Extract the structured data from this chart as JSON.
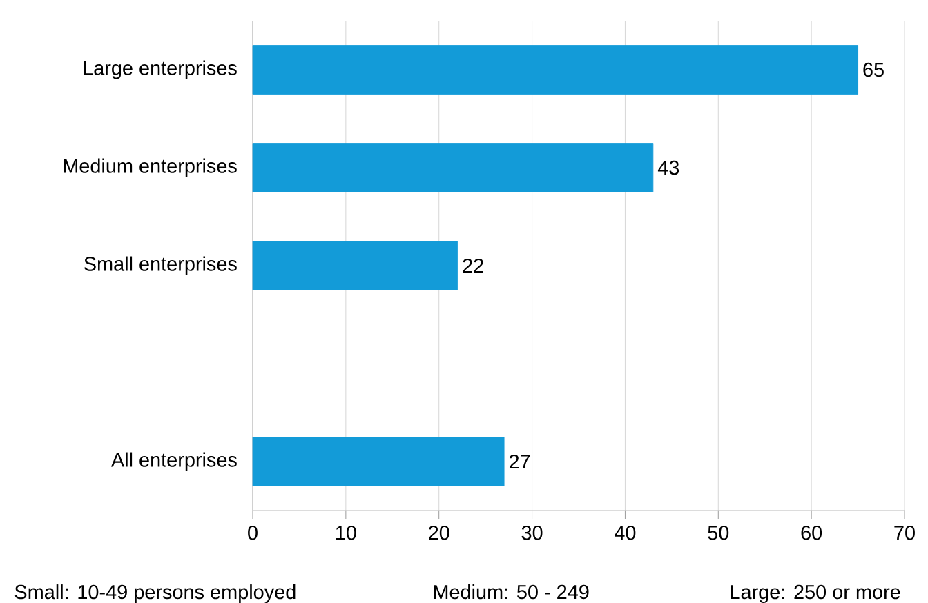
{
  "chart_data": {
    "type": "bar",
    "orientation": "horizontal",
    "categories": [
      "Large enterprises",
      "Medium enterprises",
      "Small enterprises",
      null,
      "All enterprises"
    ],
    "values": [
      65,
      43,
      22,
      null,
      27
    ],
    "color": "#139bd8",
    "xlim": [
      0,
      70
    ],
    "xticks": [
      0,
      10,
      20,
      30,
      40,
      50,
      60,
      70
    ],
    "grid": "x",
    "data_labels": true,
    "annotations": [
      "Small: 10-49 persons employed",
      "Medium: 50 - 249",
      "Large: 250 or more"
    ]
  }
}
